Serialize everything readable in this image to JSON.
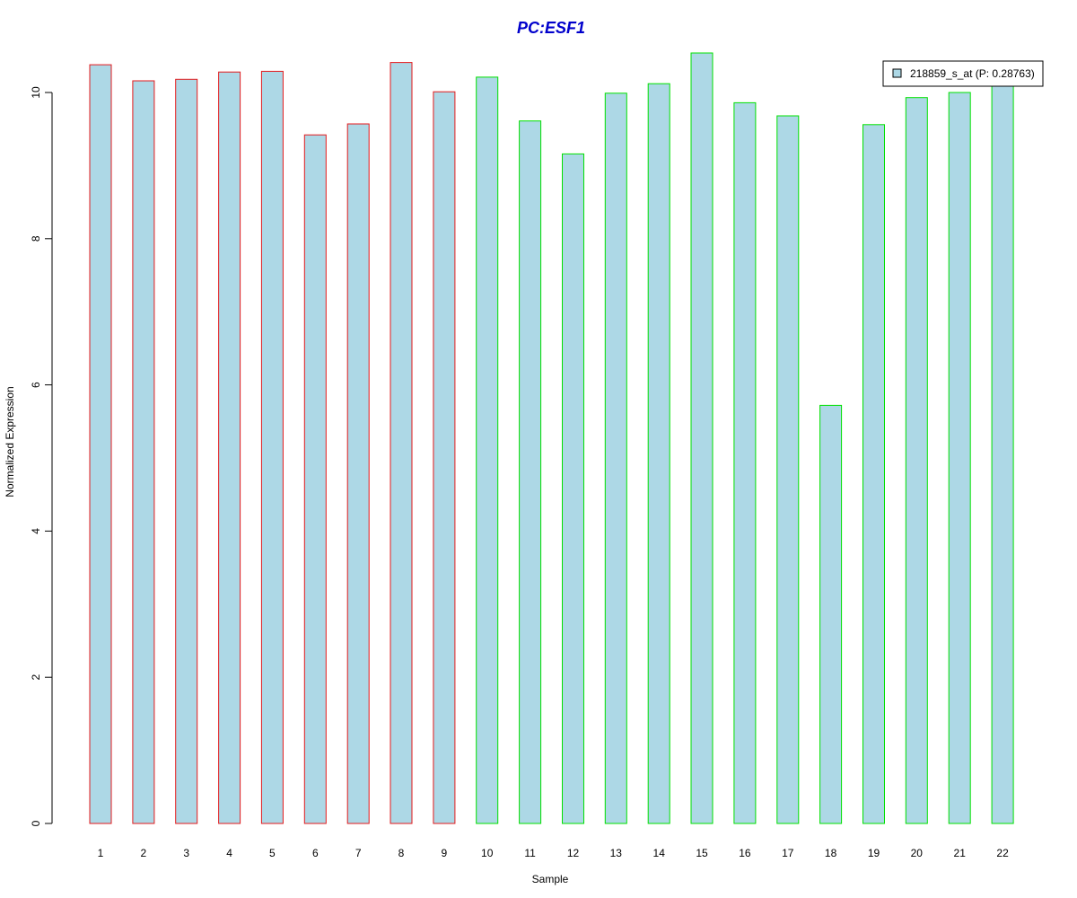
{
  "chart_data": {
    "type": "bar",
    "title": "PC:ESF1",
    "xlabel": "Sample",
    "ylabel": "Normalized Expression",
    "categories": [
      "1",
      "2",
      "3",
      "4",
      "5",
      "6",
      "7",
      "8",
      "9",
      "10",
      "11",
      "12",
      "13",
      "14",
      "15",
      "16",
      "17",
      "18",
      "19",
      "20",
      "21",
      "22"
    ],
    "values": [
      10.38,
      10.16,
      10.18,
      10.28,
      10.29,
      9.42,
      9.57,
      10.41,
      10.01,
      10.21,
      9.61,
      9.16,
      9.99,
      10.12,
      10.54,
      9.86,
      9.68,
      5.72,
      9.56,
      9.93,
      10.0,
      10.13
    ],
    "edge_colors": [
      "#e31a1c",
      "#e31a1c",
      "#e31a1c",
      "#e31a1c",
      "#e31a1c",
      "#e31a1c",
      "#e31a1c",
      "#e31a1c",
      "#e31a1c",
      "#00e000",
      "#00e000",
      "#00e000",
      "#00e000",
      "#00e000",
      "#00e000",
      "#00e000",
      "#00e000",
      "#00e000",
      "#00e000",
      "#00e000",
      "#00e000",
      "#00e000"
    ],
    "fill_color": "#add8e6",
    "title_color": "#0000cc",
    "y_ticks": [
      0,
      2,
      4,
      6,
      8,
      10
    ],
    "ylim": [
      0,
      10.54
    ],
    "legend": {
      "label": "218859_s_at (P: 0.28763)",
      "position": "top-right"
    },
    "grid": false
  }
}
